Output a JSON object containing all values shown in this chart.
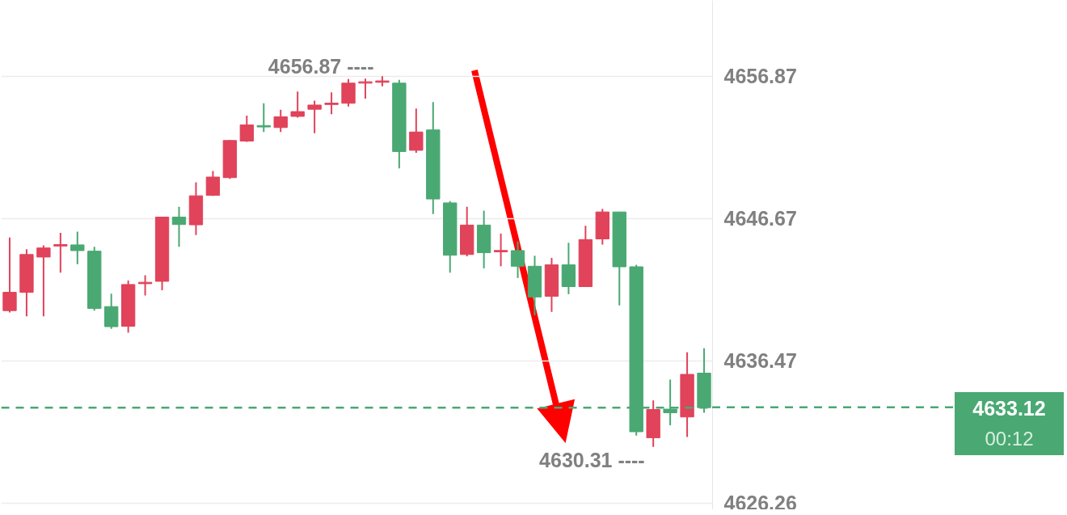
{
  "chart_data": {
    "type": "candlestick",
    "categories": [
      null,
      null,
      null,
      null,
      null,
      null,
      null,
      null,
      null,
      null,
      null,
      null,
      null,
      null,
      null,
      null,
      null,
      null,
      null,
      null,
      null,
      null,
      null,
      null,
      null,
      null,
      null,
      null,
      null,
      null,
      null,
      null,
      null,
      null,
      null,
      null,
      null,
      null,
      null,
      null,
      null,
      null
    ],
    "ohlc": [
      [
        4640.07,
        4645.31,
        4639.93,
        4641.38
      ],
      [
        4641.38,
        4644.47,
        4639.66,
        4644.09
      ],
      [
        4643.91,
        4644.75,
        4639.66,
        4644.56
      ],
      [
        4644.7,
        4645.64,
        4642.79,
        4644.8
      ],
      [
        4644.78,
        4645.73,
        4643.4,
        4644.37
      ],
      [
        4644.33,
        4644.64,
        4640.07,
        4640.22
      ],
      [
        4640.36,
        4641.29,
        4638.77,
        4638.92
      ],
      [
        4638.95,
        4642.23,
        4638.49,
        4641.94
      ],
      [
        4642.0,
        4642.6,
        4641.16,
        4642.1
      ],
      [
        4642.17,
        4646.8,
        4641.53,
        4646.77
      ],
      [
        4646.77,
        4647.51,
        4644.65,
        4646.24
      ],
      [
        4646.22,
        4649.27,
        4645.49,
        4648.3
      ],
      [
        4648.33,
        4650.07,
        4648.3,
        4649.64
      ],
      [
        4649.6,
        4652.31,
        4649.51,
        4652.26
      ],
      [
        4652.22,
        4654.05,
        4652.16,
        4653.38
      ],
      [
        4653.33,
        4654.93,
        4652.87,
        4653.23
      ],
      [
        4653.19,
        4654.46,
        4652.87,
        4653.96
      ],
      [
        4653.99,
        4655.77,
        4653.9,
        4654.33
      ],
      [
        4654.5,
        4655.12,
        4652.78,
        4654.8
      ],
      [
        4654.84,
        4655.71,
        4654.14,
        4654.94
      ],
      [
        4654.93,
        4656.66,
        4654.7,
        4656.37
      ],
      [
        4656.37,
        4656.7,
        4655.26,
        4656.47
      ],
      [
        4656.43,
        4656.87,
        4656.14,
        4656.53
      ],
      [
        4656.37,
        4656.61,
        4650.26,
        4651.47
      ],
      [
        4651.56,
        4654.55,
        4651.38,
        4652.87
      ],
      [
        4653.02,
        4655.02,
        4646.99,
        4648.07
      ],
      [
        4647.79,
        4647.92,
        4642.79,
        4644.04
      ],
      [
        4644.09,
        4647.51,
        4643.96,
        4646.2
      ],
      [
        4646.2,
        4647.23,
        4643.1,
        4644.22
      ],
      [
        4644.28,
        4645.59,
        4643.25,
        4644.38
      ],
      [
        4644.37,
        4645.03,
        4642.41,
        4643.25
      ],
      [
        4643.25,
        4644.0,
        4639.74,
        4641.05
      ],
      [
        4641.1,
        4643.85,
        4639.98,
        4643.35
      ],
      [
        4643.35,
        4644.93,
        4641.25,
        4641.79
      ],
      [
        4641.79,
        4646.15,
        4641.79,
        4645.16
      ],
      [
        4645.21,
        4647.36,
        4644.8,
        4647.14
      ],
      [
        4647.14,
        4647.14,
        4640.45,
        4643.21
      ],
      [
        4643.21,
        4643.35,
        4631.11,
        4631.39
      ],
      [
        4630.96,
        4633.63,
        4630.31,
        4632.98
      ],
      [
        4633.01,
        4635.13,
        4631.86,
        4632.75
      ],
      [
        4632.45,
        4637.09,
        4631.02,
        4635.5
      ],
      [
        4635.59,
        4637.37,
        4632.75,
        4633.12
      ]
    ],
    "colors": [
      "#e0435a",
      "#e0435a",
      "#e0435a",
      "#e0435a",
      "#4aa873",
      "#4aa873",
      "#4aa873",
      "#e0435a",
      "#e0435a",
      "#e0435a",
      "#4aa873",
      "#e0435a",
      "#e0435a",
      "#e0435a",
      "#e0435a",
      "#4aa873",
      "#e0435a",
      "#e0435a",
      "#e0435a",
      "#e0435a",
      "#e0435a",
      "#e0435a",
      "#e0435a",
      "#4aa873",
      "#e0435a",
      "#4aa873",
      "#4aa873",
      "#e0435a",
      "#4aa873",
      "#e0435a",
      "#4aa873",
      "#4aa873",
      "#e0435a",
      "#4aa873",
      "#e0435a",
      "#e0435a",
      "#4aa873",
      "#4aa873",
      "#e0435a",
      "#4aa873",
      "#e0435a",
      "#4aa873"
    ],
    "ylim": [
      4625.8,
      4662.3
    ],
    "yticks": [
      4626.26,
      4636.47,
      4646.67,
      4656.87
    ],
    "grid": "y",
    "tick_labels": "y",
    "ref_lines": [
      {
        "axis": "y",
        "value": 4633.12,
        "label": "4633.12",
        "color": "#4aa873",
        "line_style": "dashed"
      }
    ],
    "annotations": [
      "4656.87 ----",
      "4630.31 ----",
      "00:12"
    ]
  }
}
